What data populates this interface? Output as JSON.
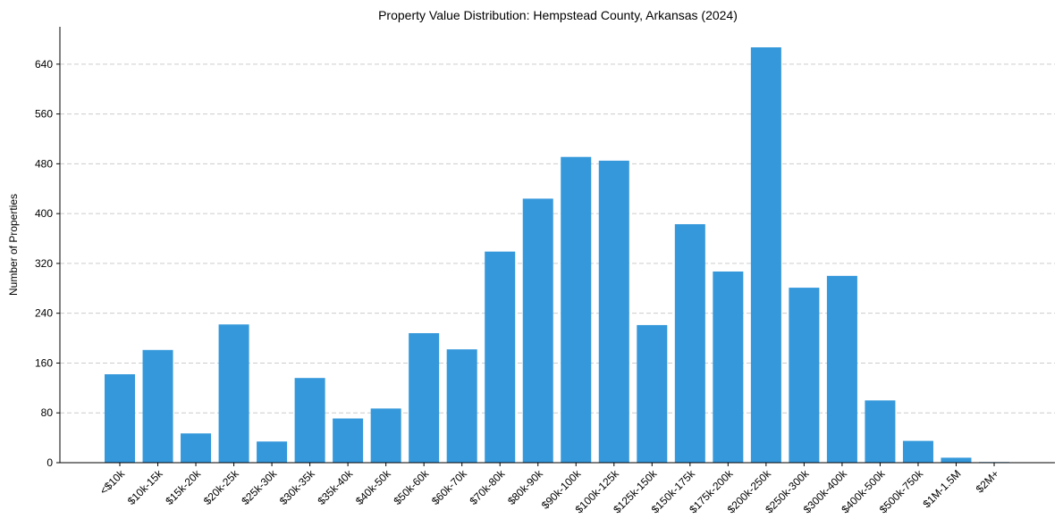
{
  "chart_data": {
    "type": "bar",
    "title": "Property Value Distribution: Hempstead County, Arkansas (2024)",
    "xlabel": "",
    "ylabel": "Number of Properties",
    "ylim": [
      0,
      700
    ],
    "yticks": [
      0,
      80,
      160,
      240,
      320,
      400,
      480,
      560,
      640
    ],
    "grid": "y-dashed",
    "categories": [
      "<$10k",
      "$10k-15k",
      "$15k-20k",
      "$20k-25k",
      "$25k-30k",
      "$30k-35k",
      "$35k-40k",
      "$40k-50k",
      "$50k-60k",
      "$60k-70k",
      "$70k-80k",
      "$80k-90k",
      "$90k-100k",
      "$100k-125k",
      "$125k-150k",
      "$150k-175k",
      "$175k-200k",
      "$200k-250k",
      "$250k-300k",
      "$300k-400k",
      "$400k-500k",
      "$500k-750k",
      "$1M-1.5M",
      "$2M+"
    ],
    "values": [
      142,
      181,
      47,
      222,
      34,
      136,
      71,
      87,
      208,
      182,
      339,
      424,
      491,
      485,
      221,
      383,
      307,
      667,
      281,
      300,
      100,
      35,
      8,
      1
    ],
    "bar_color": "#3498db",
    "grid_color": "#cccccc",
    "axis_color": "#000000"
  }
}
